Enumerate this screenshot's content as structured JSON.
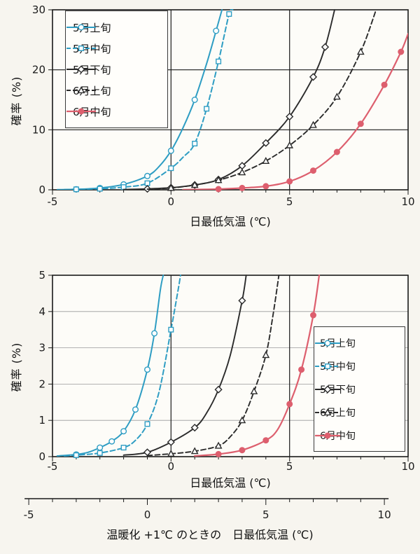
{
  "colors": {
    "cyan": "#2e9dc3",
    "black": "#2b2b2b",
    "red": "#dd5f6e",
    "grid_minor": "#9a9a9a",
    "grid_major": "#1a1a1a"
  },
  "chart_data": [
    {
      "type": "line",
      "title": "",
      "xlabel": "日最低気温 (℃)",
      "ylabel": "確率 (%)",
      "xlim": [
        -5,
        10
      ],
      "ylim": [
        0,
        30
      ],
      "xticks": [
        -5,
        0,
        5,
        10
      ],
      "yticks": [
        0,
        10,
        20,
        30
      ],
      "x_minor_tick_step": 1,
      "grid": {
        "v_major": [
          0,
          5
        ],
        "h_major": [
          10,
          20
        ],
        "h_minor": []
      },
      "legend_position": "top-left",
      "series": [
        {
          "id": "may-early",
          "name": "5月上旬",
          "color": "#2e9dc3",
          "line": "solid",
          "marker": "circle-open",
          "width": 2,
          "curve": [
            [
              -4.8,
              0.02
            ],
            [
              -4,
              0.08
            ],
            [
              -3,
              0.3
            ],
            [
              -2,
              0.9
            ],
            [
              -1,
              2.3
            ],
            [
              -0.5,
              3.9
            ],
            [
              0,
              6.5
            ],
            [
              0.5,
              10.3
            ],
            [
              1,
              15
            ],
            [
              1.5,
              21
            ],
            [
              1.9,
              26.5
            ],
            [
              2.15,
              30
            ]
          ],
          "markers": [
            [
              -4,
              0.08
            ],
            [
              -3,
              0.3
            ],
            [
              -2,
              0.9
            ],
            [
              -1,
              2.3
            ],
            [
              0,
              6.5
            ],
            [
              1,
              15
            ],
            [
              1.9,
              26.5
            ]
          ]
        },
        {
          "id": "may-mid",
          "name": "5月中旬",
          "color": "#2e9dc3",
          "line": "dashed",
          "marker": "square-open",
          "width": 2,
          "curve": [
            [
              -4.5,
              0.04
            ],
            [
              -4,
              0.08
            ],
            [
              -3,
              0.18
            ],
            [
              -2,
              0.45
            ],
            [
              -1,
              1.1
            ],
            [
              0,
              3.6
            ],
            [
              0.5,
              5.4
            ],
            [
              1,
              7.7
            ],
            [
              1.5,
              13.5
            ],
            [
              2,
              21.4
            ],
            [
              2.45,
              29.3
            ],
            [
              2.6,
              30
            ]
          ],
          "markers": [
            [
              -4,
              0.08
            ],
            [
              -3,
              0.18
            ],
            [
              -2,
              0.45
            ],
            [
              -1,
              1.1
            ],
            [
              0,
              3.6
            ],
            [
              1,
              7.7
            ],
            [
              1.5,
              13.5
            ],
            [
              2,
              21.4
            ],
            [
              2.45,
              29.3
            ]
          ]
        },
        {
          "id": "may-late",
          "name": "5月下旬",
          "color": "#2b2b2b",
          "line": "solid",
          "marker": "diamond-open",
          "width": 1.9,
          "curve": [
            [
              -2,
              0.05
            ],
            [
              -1,
              0.15
            ],
            [
              0,
              0.35
            ],
            [
              1,
              0.8
            ],
            [
              2,
              1.7
            ],
            [
              3,
              4.0
            ],
            [
              4,
              7.8
            ],
            [
              5,
              12.2
            ],
            [
              6,
              18.8
            ],
            [
              6.5,
              23.8
            ],
            [
              6.9,
              30
            ]
          ],
          "markers": [
            [
              -1,
              0.15
            ],
            [
              0,
              0.35
            ],
            [
              1,
              0.8
            ],
            [
              2,
              1.7
            ],
            [
              3,
              4.0
            ],
            [
              4,
              7.8
            ],
            [
              5,
              12.2
            ],
            [
              6,
              18.8
            ],
            [
              6.5,
              23.8
            ]
          ]
        },
        {
          "id": "jun-early",
          "name": "6月上旬",
          "color": "#2b2b2b",
          "line": "dashed",
          "marker": "triangle-open",
          "width": 1.9,
          "curve": [
            [
              -1,
              0.1
            ],
            [
              0,
              0.3
            ],
            [
              1,
              0.8
            ],
            [
              2,
              1.6
            ],
            [
              3,
              2.9
            ],
            [
              4,
              4.8
            ],
            [
              5,
              7.4
            ],
            [
              6,
              10.8
            ],
            [
              7,
              15.5
            ],
            [
              8,
              23
            ],
            [
              8.65,
              30
            ]
          ],
          "markers": [
            [
              0,
              0.3
            ],
            [
              1,
              0.8
            ],
            [
              2,
              1.6
            ],
            [
              3,
              2.9
            ],
            [
              4,
              4.8
            ],
            [
              5,
              7.4
            ],
            [
              6,
              10.8
            ],
            [
              7,
              15.5
            ],
            [
              8,
              23
            ]
          ]
        },
        {
          "id": "jun-mid",
          "name": "6月中旬",
          "color": "#dd5f6e",
          "line": "solid",
          "marker": "circle-filled",
          "width": 2.2,
          "curve": [
            [
              0.5,
              0.02
            ],
            [
              1,
              0.05
            ],
            [
              2,
              0.12
            ],
            [
              3,
              0.3
            ],
            [
              4,
              0.6
            ],
            [
              5,
              1.4
            ],
            [
              6,
              3.2
            ],
            [
              7,
              6.3
            ],
            [
              8,
              11
            ],
            [
              9,
              17.5
            ],
            [
              9.7,
              23
            ],
            [
              10,
              26
            ]
          ],
          "markers": [
            [
              2,
              0.12
            ],
            [
              3,
              0.3
            ],
            [
              4,
              0.6
            ],
            [
              5,
              1.4
            ],
            [
              6,
              3.2
            ],
            [
              7,
              6.3
            ],
            [
              8,
              11
            ],
            [
              9,
              17.5
            ],
            [
              9.7,
              23
            ]
          ]
        }
      ]
    },
    {
      "type": "line",
      "title": "",
      "xlabel": "日最低気温 (℃)",
      "ylabel": "確率 (%)",
      "xlim": [
        -5,
        10
      ],
      "ylim": [
        0,
        5
      ],
      "xticks": [
        -5,
        0,
        5,
        10
      ],
      "yticks": [
        0,
        1,
        2,
        3,
        4,
        5
      ],
      "x_minor_tick_step": 1,
      "grid": {
        "v_major": [
          0,
          5
        ],
        "h_major": [],
        "h_minor": [
          1,
          2,
          3,
          4
        ]
      },
      "legend_position": "right",
      "series": [
        {
          "id": "may-early",
          "name": "5月上旬",
          "color": "#2e9dc3",
          "line": "solid",
          "marker": "circle-open",
          "width": 2,
          "curve": [
            [
              -4.8,
              0.02
            ],
            [
              -4,
              0.06
            ],
            [
              -3.5,
              0.12
            ],
            [
              -3,
              0.25
            ],
            [
              -2.5,
              0.42
            ],
            [
              -2,
              0.7
            ],
            [
              -1.5,
              1.3
            ],
            [
              -1,
              2.4
            ],
            [
              -0.7,
              3.4
            ],
            [
              -0.45,
              4.6
            ],
            [
              -0.33,
              5
            ]
          ],
          "markers": [
            [
              -4,
              0.06
            ],
            [
              -3,
              0.25
            ],
            [
              -2.5,
              0.42
            ],
            [
              -2,
              0.7
            ],
            [
              -1.5,
              1.3
            ],
            [
              -1,
              2.4
            ],
            [
              -0.7,
              3.4
            ]
          ]
        },
        {
          "id": "may-mid",
          "name": "5月中旬",
          "color": "#2e9dc3",
          "line": "dashed",
          "marker": "square-open",
          "width": 2,
          "curve": [
            [
              -4.5,
              0.02
            ],
            [
              -4,
              0.04
            ],
            [
              -3,
              0.1
            ],
            [
              -2,
              0.25
            ],
            [
              -1.5,
              0.45
            ],
            [
              -1,
              0.9
            ],
            [
              -0.5,
              1.8
            ],
            [
              0,
              3.5
            ],
            [
              0.3,
              4.6
            ],
            [
              0.4,
              5
            ]
          ],
          "markers": [
            [
              -4,
              0.04
            ],
            [
              -3,
              0.1
            ],
            [
              -2,
              0.25
            ],
            [
              -1,
              0.9
            ],
            [
              0,
              3.5
            ]
          ]
        },
        {
          "id": "may-late",
          "name": "5月下旬",
          "color": "#2b2b2b",
          "line": "solid",
          "marker": "diamond-open",
          "width": 1.9,
          "curve": [
            [
              -2,
              0.04
            ],
            [
              -1,
              0.12
            ],
            [
              0,
              0.4
            ],
            [
              1,
              0.8
            ],
            [
              1.5,
              1.2
            ],
            [
              2,
              1.85
            ],
            [
              2.5,
              2.8
            ],
            [
              3,
              4.3
            ],
            [
              3.17,
              5
            ]
          ],
          "markers": [
            [
              -1,
              0.12
            ],
            [
              0,
              0.4
            ],
            [
              1,
              0.8
            ],
            [
              2,
              1.85
            ],
            [
              3,
              4.3
            ]
          ]
        },
        {
          "id": "jun-early",
          "name": "6月上旬",
          "color": "#2b2b2b",
          "line": "dashed",
          "marker": "triangle-open",
          "width": 1.9,
          "curve": [
            [
              -1,
              0.03
            ],
            [
              0,
              0.08
            ],
            [
              1,
              0.15
            ],
            [
              2,
              0.3
            ],
            [
              2.5,
              0.55
            ],
            [
              3,
              1.0
            ],
            [
              3.5,
              1.8
            ],
            [
              4,
              2.8
            ],
            [
              4.3,
              3.9
            ],
            [
              4.55,
              5
            ]
          ],
          "markers": [
            [
              0,
              0.08
            ],
            [
              1,
              0.15
            ],
            [
              2,
              0.3
            ],
            [
              3,
              1.0
            ],
            [
              3.5,
              1.8
            ],
            [
              4,
              2.8
            ]
          ]
        },
        {
          "id": "jun-mid",
          "name": "6月中旬",
          "color": "#dd5f6e",
          "line": "solid",
          "marker": "circle-filled",
          "width": 2.2,
          "curve": [
            [
              1,
              0.02
            ],
            [
              2,
              0.07
            ],
            [
              3,
              0.18
            ],
            [
              4,
              0.45
            ],
            [
              4.5,
              0.75
            ],
            [
              5,
              1.45
            ],
            [
              5.5,
              2.4
            ],
            [
              6,
              3.9
            ],
            [
              6.25,
              5
            ]
          ],
          "markers": [
            [
              2,
              0.07
            ],
            [
              3,
              0.18
            ],
            [
              4,
              0.45
            ],
            [
              5,
              1.45
            ],
            [
              5.5,
              2.4
            ],
            [
              6,
              3.9
            ]
          ]
        }
      ]
    }
  ],
  "warming_axis": {
    "label": "温暖化 +1℃ のときの　日最低気温 (℃)",
    "ticks": [
      -5,
      0,
      5,
      10
    ],
    "minor_tick_step": 1,
    "range": [
      -5,
      10
    ],
    "offset_deg": 1
  }
}
